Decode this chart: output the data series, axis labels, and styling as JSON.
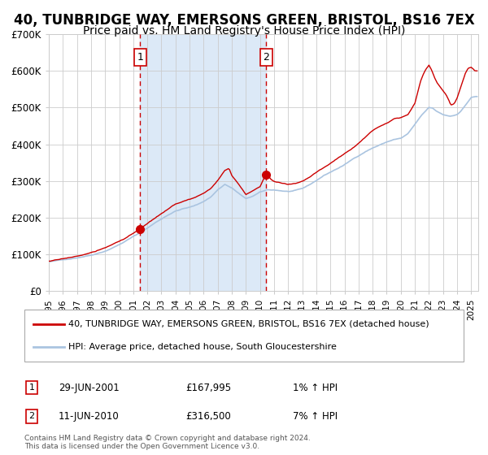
{
  "title": "40, TUNBRIDGE WAY, EMERSONS GREEN, BRISTOL, BS16 7EX",
  "subtitle": "Price paid vs. HM Land Registry's House Price Index (HPI)",
  "title_fontsize": 12,
  "subtitle_fontsize": 10,
  "bg_color": "#ffffff",
  "plot_bg_color": "#ffffff",
  "shade_color": "#dce9f7",
  "grid_color": "#cccccc",
  "red_line_color": "#cc0000",
  "blue_line_color": "#aac4e0",
  "marker_color": "#cc0000",
  "dashed_color": "#cc0000",
  "legend_label_red": "40, TUNBRIDGE WAY, EMERSONS GREEN, BRISTOL, BS16 7EX (detached house)",
  "legend_label_blue": "HPI: Average price, detached house, South Gloucestershire",
  "transaction1_date": "29-JUN-2001",
  "transaction1_price": "£167,995",
  "transaction1_hpi": "1% ↑ HPI",
  "transaction1_year": 2001.49,
  "transaction1_value": 167995,
  "transaction2_date": "11-JUN-2010",
  "transaction2_price": "£316,500",
  "transaction2_hpi": "7% ↑ HPI",
  "transaction2_year": 2010.44,
  "transaction2_value": 316500,
  "footer_line1": "Contains HM Land Registry data © Crown copyright and database right 2024.",
  "footer_line2": "This data is licensed under the Open Government Licence v3.0.",
  "ylim_max": 700000,
  "ylim_min": 0,
  "xmin": 1995.0,
  "xmax": 2025.5,
  "yticks": [
    0,
    100000,
    200000,
    300000,
    400000,
    500000,
    600000,
    700000
  ],
  "ytick_labels": [
    "£0",
    "£100K",
    "£200K",
    "£300K",
    "£400K",
    "£500K",
    "£600K",
    "£700K"
  ]
}
